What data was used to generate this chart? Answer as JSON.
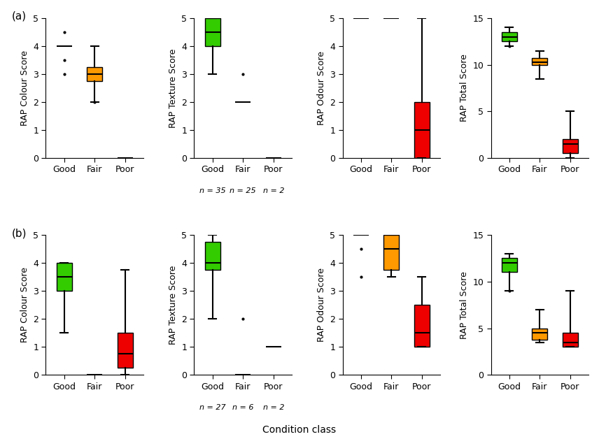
{
  "colors": {
    "Good": "#33cc00",
    "Fair": "#ff9900",
    "Poor": "#ee0000"
  },
  "panel_labels": [
    "(a)",
    "(b)"
  ],
  "col_ylabels": [
    "RAP Colour Score",
    "RAP Texture Score",
    "RAP Odour Score",
    "RAP Total Score"
  ],
  "xlabel": "Condition class",
  "categories": [
    "Good",
    "Fair",
    "Poor"
  ],
  "box_width": 0.5,
  "row_a": {
    "colour": {
      "Good": {
        "q1": null,
        "med": null,
        "q3": null,
        "whislo": null,
        "whishi": null,
        "line": 4.0,
        "fliers": [
          4.5,
          3.5,
          3.0
        ]
      },
      "Fair": {
        "q1": 2.75,
        "med": 3.0,
        "q3": 3.25,
        "whislo": 2.0,
        "whishi": 4.0,
        "line": null,
        "fliers": [
          2.0
        ]
      },
      "Poor": {
        "q1": null,
        "med": null,
        "q3": null,
        "whislo": null,
        "whishi": null,
        "line": 0.0,
        "fliers": []
      }
    },
    "colour_ylim": [
      0,
      5
    ],
    "colour_yticks": [
      0,
      1,
      2,
      3,
      4,
      5
    ],
    "texture": {
      "Good": {
        "q1": 4.0,
        "med": 4.5,
        "q3": 5.0,
        "whislo": 3.0,
        "whishi": 5.0,
        "line": null,
        "fliers": []
      },
      "Fair": {
        "q1": null,
        "med": null,
        "q3": null,
        "whislo": null,
        "whishi": null,
        "line": 2.0,
        "fliers": [
          3.0
        ]
      },
      "Poor": {
        "q1": null,
        "med": null,
        "q3": null,
        "whislo": null,
        "whishi": null,
        "line": 0.0,
        "fliers": []
      }
    },
    "texture_ylim": [
      0,
      5
    ],
    "texture_yticks": [
      0,
      1,
      2,
      3,
      4,
      5
    ],
    "texture_n": [
      "n = 35",
      "n = 25",
      "n = 2"
    ],
    "odour": {
      "Good": {
        "q1": null,
        "med": null,
        "q3": null,
        "whislo": null,
        "whishi": null,
        "line": 5.0,
        "fliers": []
      },
      "Fair": {
        "q1": null,
        "med": null,
        "q3": null,
        "whislo": null,
        "whishi": null,
        "line": 5.0,
        "fliers": []
      },
      "Poor": {
        "q1": 0.0,
        "med": 1.0,
        "q3": 2.0,
        "whislo": 0.0,
        "whishi": 5.0,
        "line": null,
        "fliers": []
      }
    },
    "odour_ylim": [
      0,
      5
    ],
    "odour_yticks": [
      0,
      1,
      2,
      3,
      4,
      5
    ],
    "total": {
      "Good": {
        "q1": 12.5,
        "med": 13.0,
        "q3": 13.5,
        "whislo": 12.0,
        "whishi": 14.0,
        "line": null,
        "fliers": [
          12.0
        ]
      },
      "Fair": {
        "q1": 10.0,
        "med": 10.25,
        "q3": 10.75,
        "whislo": 8.5,
        "whishi": 11.5,
        "line": null,
        "fliers": []
      },
      "Poor": {
        "q1": 0.5,
        "med": 1.5,
        "q3": 2.0,
        "whislo": 0.0,
        "whishi": 5.0,
        "line": null,
        "fliers": []
      }
    },
    "total_ylim": [
      0,
      15
    ],
    "total_yticks": [
      0,
      5,
      10,
      15
    ]
  },
  "row_b": {
    "colour": {
      "Good": {
        "q1": 3.0,
        "med": 3.5,
        "q3": 4.0,
        "whislo": 1.5,
        "whishi": 4.0,
        "line": null,
        "fliers": []
      },
      "Fair": {
        "q1": null,
        "med": null,
        "q3": null,
        "whislo": null,
        "whishi": null,
        "line": 0.0,
        "fliers": []
      },
      "Poor": {
        "q1": 0.25,
        "med": 0.75,
        "q3": 1.5,
        "whislo": 0.0,
        "whishi": 3.75,
        "line": null,
        "fliers": []
      }
    },
    "colour_ylim": [
      0,
      5
    ],
    "colour_yticks": [
      0,
      1,
      2,
      3,
      4,
      5
    ],
    "texture": {
      "Good": {
        "q1": 3.75,
        "med": 4.0,
        "q3": 4.75,
        "whislo": 2.0,
        "whishi": 5.0,
        "line": null,
        "fliers": []
      },
      "Fair": {
        "q1": null,
        "med": null,
        "q3": null,
        "whislo": null,
        "whishi": null,
        "line": 0.0,
        "fliers": [
          2.0
        ]
      },
      "Poor": {
        "q1": null,
        "med": null,
        "q3": null,
        "whislo": null,
        "whishi": null,
        "line": 1.0,
        "fliers": []
      }
    },
    "texture_ylim": [
      0,
      5
    ],
    "texture_yticks": [
      0,
      1,
      2,
      3,
      4,
      5
    ],
    "texture_n": [
      "n = 27",
      "n = 6",
      "n = 2"
    ],
    "odour": {
      "Good": {
        "q1": null,
        "med": null,
        "q3": null,
        "whislo": null,
        "whishi": null,
        "line": 5.0,
        "fliers": [
          3.5,
          4.5
        ]
      },
      "Fair": {
        "q1": 3.75,
        "med": 4.5,
        "q3": 5.0,
        "whislo": 3.5,
        "whishi": 5.0,
        "line": null,
        "fliers": []
      },
      "Poor": {
        "q1": 1.0,
        "med": 1.5,
        "q3": 2.5,
        "whislo": 1.0,
        "whishi": 3.5,
        "line": null,
        "fliers": []
      }
    },
    "odour_ylim": [
      0,
      5
    ],
    "odour_yticks": [
      0,
      1,
      2,
      3,
      4,
      5
    ],
    "total": {
      "Good": {
        "q1": 11.0,
        "med": 12.0,
        "q3": 12.5,
        "whislo": 9.0,
        "whishi": 13.0,
        "line": null,
        "fliers": [
          9.0
        ]
      },
      "Fair": {
        "q1": 3.75,
        "med": 4.5,
        "q3": 5.0,
        "whislo": 3.5,
        "whishi": 7.0,
        "line": null,
        "fliers": []
      },
      "Poor": {
        "q1": 3.0,
        "med": 3.5,
        "q3": 4.5,
        "whislo": 3.0,
        "whishi": 9.0,
        "line": null,
        "fliers": []
      }
    },
    "total_ylim": [
      0,
      15
    ],
    "total_yticks": [
      0,
      5,
      10,
      15
    ]
  }
}
